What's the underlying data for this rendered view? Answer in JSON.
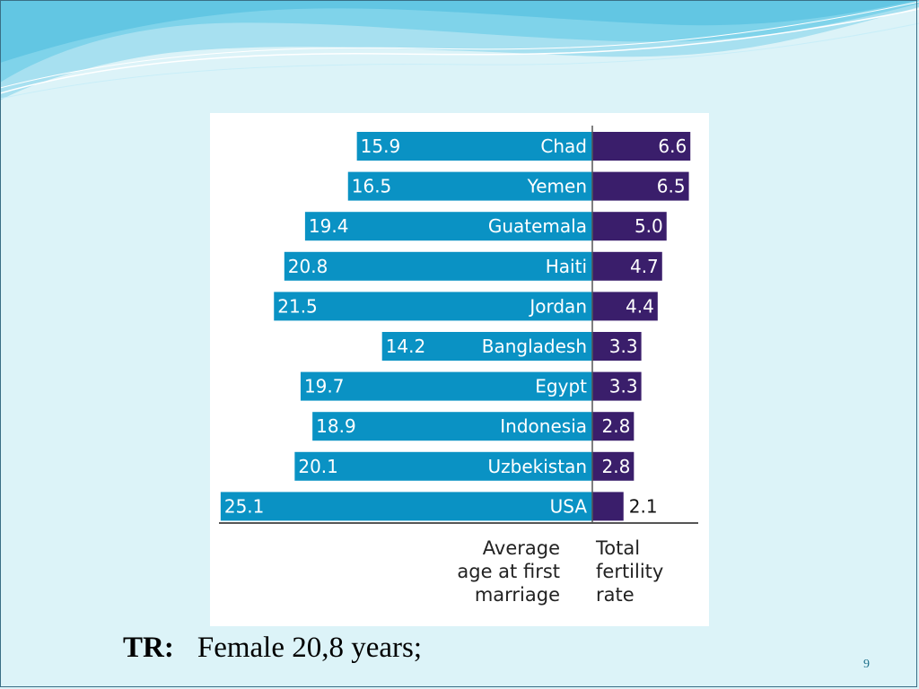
{
  "theme": {
    "background": "#dcf3f8",
    "wave_light": "#9fdcef",
    "wave_mid": "#58c3e1",
    "wave_line": "#ffffff",
    "bar_age": "#0a92c4",
    "bar_fertility": "#3a1e6b"
  },
  "chart_data": {
    "type": "bar",
    "orientation": "horizontal",
    "categories": [
      "Chad",
      "Yemen",
      "Guatemala",
      "Haiti",
      "Jordan",
      "Bangladesh",
      "Egypt",
      "Indonesia",
      "Uzbekistan",
      "USA"
    ],
    "series": [
      {
        "values": [
          15.9,
          16.5,
          19.4,
          20.8,
          21.5,
          14.2,
          19.7,
          18.9,
          20.1,
          25.1
        ]
      },
      {
        "values": [
          6.6,
          6.5,
          5.0,
          4.7,
          4.4,
          3.3,
          3.3,
          2.8,
          2.8,
          2.1
        ]
      }
    ],
    "value_labels": {
      "age": [
        "15.9",
        "16.5",
        "19.4",
        "20.8",
        "21.5",
        "14.2",
        "19.7",
        "18.9",
        "20.1",
        "25.1"
      ],
      "fertility": [
        "6.6",
        "6.5",
        "5.0",
        "4.7",
        "4.4",
        "3.3",
        "3.3",
        "2.8",
        "2.8",
        "2.1"
      ]
    },
    "axis_label_age": [
      "Average",
      "age at first",
      "marriage"
    ],
    "axis_label_fertility": [
      "Total",
      "fertility",
      "rate"
    ]
  },
  "footer": {
    "prefix": "TR:",
    "text": "Female 20,8 years;"
  },
  "slide_number": "9"
}
